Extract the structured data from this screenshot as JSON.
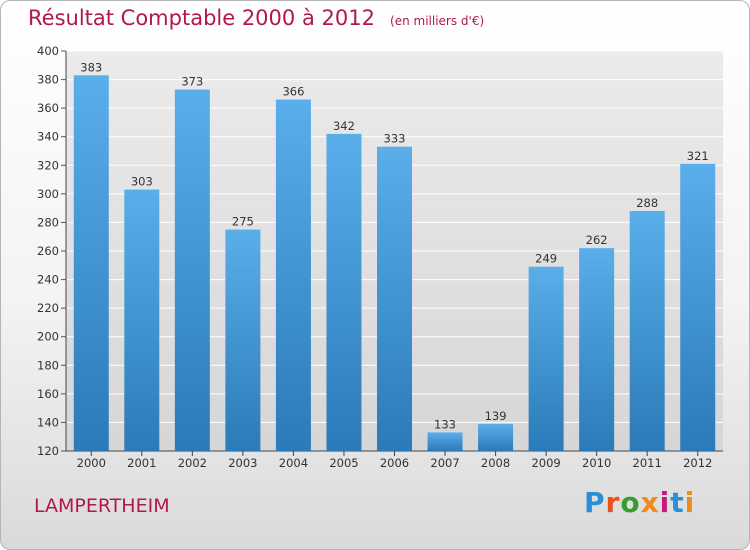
{
  "title": "Résultat Comptable 2000 à 2012",
  "unit_note": "(en milliers d'€)",
  "city": "LAMPERTHEIM",
  "brand": "Proxiti",
  "brand_colors": [
    "#2a8fd6",
    "#e8501e",
    "#3a9b2e",
    "#ef8b1c",
    "#c8197b",
    "#2a8fd6",
    "#ef8b1c"
  ],
  "colors": {
    "title": "#b2174e",
    "bar_top": "#5aaeea",
    "bar_bottom": "#2b7ab9",
    "plot_bg_top": "#ebebeb",
    "plot_bg_bottom": "#d6d6d6",
    "grid": "#ffffff"
  },
  "chart_data": {
    "type": "bar",
    "title": "Résultat Comptable 2000 à 2012",
    "categories": [
      "2000",
      "2001",
      "2002",
      "2003",
      "2004",
      "2005",
      "2006",
      "2007",
      "2008",
      "2009",
      "2010",
      "2011",
      "2012"
    ],
    "values": [
      383,
      303,
      373,
      275,
      366,
      342,
      333,
      133,
      139,
      249,
      262,
      288,
      321
    ],
    "ylim": [
      120,
      400
    ],
    "yticks": [
      120,
      140,
      160,
      180,
      200,
      220,
      240,
      260,
      280,
      300,
      320,
      340,
      360,
      380,
      400
    ],
    "grid": true,
    "data_labels": true
  }
}
